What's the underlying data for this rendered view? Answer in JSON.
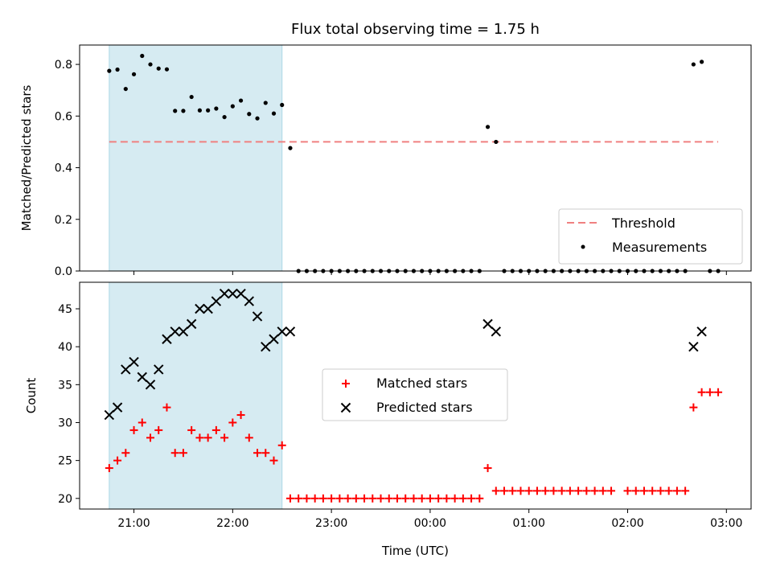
{
  "chart_data": [
    {
      "type": "scatter",
      "title": "Flux total observing time = 1.75 h",
      "xlabel": "",
      "ylabel": "Matched/Predicted stars",
      "ylim": [
        0.0,
        0.875
      ],
      "yticks": [
        "0.0",
        "0.2",
        "0.4",
        "0.6",
        "0.8"
      ],
      "xlim": [
        "20:27",
        "03:15"
      ],
      "xticks": [
        "21:00",
        "22:00",
        "23:00",
        "00:00",
        "01:00",
        "02:00",
        "03:00"
      ],
      "highlight_band": {
        "x": [
          "20:45",
          "22:30"
        ],
        "color": "#add8e6"
      },
      "threshold": {
        "name": "Threshold",
        "value": 0.5,
        "x": [
          "20:45",
          "02:55"
        ],
        "color": "#f08080",
        "style": "dashed"
      },
      "legend": {
        "position": "lower-right",
        "entries": [
          "Threshold",
          "Measurements"
        ]
      },
      "series": [
        {
          "name": "Measurements",
          "marker": "dot",
          "color": "#000000",
          "points": [
            [
              "20:45",
              0.775
            ],
            [
              "20:50",
              0.78
            ],
            [
              "20:55",
              0.705
            ],
            [
              "21:00",
              0.762
            ],
            [
              "21:05",
              0.833
            ],
            [
              "21:10",
              0.8
            ],
            [
              "21:15",
              0.784
            ],
            [
              "21:20",
              0.781
            ],
            [
              "21:25",
              0.62
            ],
            [
              "21:30",
              0.62
            ],
            [
              "21:35",
              0.674
            ],
            [
              "21:40",
              0.622
            ],
            [
              "21:45",
              0.622
            ],
            [
              "21:50",
              0.629
            ],
            [
              "21:55",
              0.596
            ],
            [
              "22:00",
              0.638
            ],
            [
              "22:05",
              0.66
            ],
            [
              "22:10",
              0.608
            ],
            [
              "22:15",
              0.591
            ],
            [
              "22:20",
              0.651
            ],
            [
              "22:25",
              0.61
            ],
            [
              "22:30",
              0.643
            ],
            [
              "22:35",
              0.476
            ],
            [
              "22:40",
              0.0
            ],
            [
              "22:45",
              0.0
            ],
            [
              "22:50",
              0.0
            ],
            [
              "22:55",
              0.0
            ],
            [
              "23:00",
              0.0
            ],
            [
              "23:05",
              0.0
            ],
            [
              "23:10",
              0.0
            ],
            [
              "23:15",
              0.0
            ],
            [
              "23:20",
              0.0
            ],
            [
              "23:25",
              0.0
            ],
            [
              "23:30",
              0.0
            ],
            [
              "23:35",
              0.0
            ],
            [
              "23:40",
              0.0
            ],
            [
              "23:45",
              0.0
            ],
            [
              "23:50",
              0.0
            ],
            [
              "23:55",
              0.0
            ],
            [
              "00:00",
              0.0
            ],
            [
              "00:05",
              0.0
            ],
            [
              "00:10",
              0.0
            ],
            [
              "00:15",
              0.0
            ],
            [
              "00:20",
              0.0
            ],
            [
              "00:25",
              0.0
            ],
            [
              "00:30",
              0.0
            ],
            [
              "00:35",
              0.558
            ],
            [
              "00:40",
              0.5
            ],
            [
              "00:45",
              0.0
            ],
            [
              "00:50",
              0.0
            ],
            [
              "00:55",
              0.0
            ],
            [
              "01:00",
              0.0
            ],
            [
              "01:05",
              0.0
            ],
            [
              "01:10",
              0.0
            ],
            [
              "01:15",
              0.0
            ],
            [
              "01:20",
              0.0
            ],
            [
              "01:25",
              0.0
            ],
            [
              "01:30",
              0.0
            ],
            [
              "01:35",
              0.0
            ],
            [
              "01:40",
              0.0
            ],
            [
              "01:45",
              0.0
            ],
            [
              "01:50",
              0.0
            ],
            [
              "01:55",
              0.0
            ],
            [
              "02:00",
              0.0
            ],
            [
              "02:05",
              0.0
            ],
            [
              "02:10",
              0.0
            ],
            [
              "02:15",
              0.0
            ],
            [
              "02:20",
              0.0
            ],
            [
              "02:25",
              0.0
            ],
            [
              "02:30",
              0.0
            ],
            [
              "02:35",
              0.0
            ],
            [
              "02:40",
              0.8
            ],
            [
              "02:45",
              0.81
            ],
            [
              "02:50",
              0.0
            ],
            [
              "02:55",
              0.0
            ]
          ]
        }
      ]
    },
    {
      "type": "scatter",
      "title": "",
      "xlabel": "Time (UTC)",
      "ylabel": "Count",
      "ylim": [
        18.6,
        48.5
      ],
      "yticks": [
        "20",
        "25",
        "30",
        "35",
        "40",
        "45"
      ],
      "xlim": [
        "20:27",
        "03:15"
      ],
      "xticks": [
        "21:00",
        "22:00",
        "23:00",
        "00:00",
        "01:00",
        "02:00",
        "03:00"
      ],
      "highlight_band": {
        "x": [
          "20:45",
          "22:30"
        ],
        "color": "#add8e6"
      },
      "legend": {
        "position": "center",
        "entries": [
          "Matched stars",
          "Predicted stars"
        ]
      },
      "series": [
        {
          "name": "Matched stars",
          "marker": "plus",
          "color": "#ff0000",
          "points": [
            [
              "20:45",
              24
            ],
            [
              "20:50",
              25
            ],
            [
              "20:55",
              26
            ],
            [
              "21:00",
              29
            ],
            [
              "21:05",
              30
            ],
            [
              "21:10",
              28
            ],
            [
              "21:15",
              29
            ],
            [
              "21:20",
              32
            ],
            [
              "21:25",
              26
            ],
            [
              "21:30",
              26
            ],
            [
              "21:35",
              29
            ],
            [
              "21:40",
              28
            ],
            [
              "21:45",
              28
            ],
            [
              "21:50",
              29
            ],
            [
              "21:55",
              28
            ],
            [
              "22:00",
              30
            ],
            [
              "22:05",
              31
            ],
            [
              "22:10",
              28
            ],
            [
              "22:15",
              26
            ],
            [
              "22:20",
              26
            ],
            [
              "22:25",
              25
            ],
            [
              "22:30",
              27
            ],
            [
              "22:35",
              20
            ],
            [
              "22:40",
              20
            ],
            [
              "22:45",
              20
            ],
            [
              "22:50",
              20
            ],
            [
              "22:55",
              20
            ],
            [
              "23:00",
              20
            ],
            [
              "23:05",
              20
            ],
            [
              "23:10",
              20
            ],
            [
              "23:15",
              20
            ],
            [
              "23:20",
              20
            ],
            [
              "23:25",
              20
            ],
            [
              "23:30",
              20
            ],
            [
              "23:35",
              20
            ],
            [
              "23:40",
              20
            ],
            [
              "23:45",
              20
            ],
            [
              "23:50",
              20
            ],
            [
              "23:55",
              20
            ],
            [
              "00:00",
              20
            ],
            [
              "00:05",
              20
            ],
            [
              "00:10",
              20
            ],
            [
              "00:15",
              20
            ],
            [
              "00:20",
              20
            ],
            [
              "00:25",
              20
            ],
            [
              "00:30",
              20
            ],
            [
              "00:35",
              24
            ],
            [
              "00:40",
              21
            ],
            [
              "00:45",
              21
            ],
            [
              "00:50",
              21
            ],
            [
              "00:55",
              21
            ],
            [
              "01:00",
              21
            ],
            [
              "01:05",
              21
            ],
            [
              "01:10",
              21
            ],
            [
              "01:15",
              21
            ],
            [
              "01:20",
              21
            ],
            [
              "01:25",
              21
            ],
            [
              "01:30",
              21
            ],
            [
              "01:35",
              21
            ],
            [
              "01:40",
              21
            ],
            [
              "01:45",
              21
            ],
            [
              "01:50",
              21
            ],
            [
              "02:00",
              21
            ],
            [
              "02:05",
              21
            ],
            [
              "02:10",
              21
            ],
            [
              "02:15",
              21
            ],
            [
              "02:20",
              21
            ],
            [
              "02:25",
              21
            ],
            [
              "02:30",
              21
            ],
            [
              "02:35",
              21
            ],
            [
              "02:40",
              32
            ],
            [
              "02:45",
              34
            ],
            [
              "02:50",
              34
            ],
            [
              "02:55",
              34
            ]
          ]
        },
        {
          "name": "Predicted stars",
          "marker": "x",
          "color": "#000000",
          "points": [
            [
              "20:45",
              31
            ],
            [
              "20:50",
              32
            ],
            [
              "20:55",
              37
            ],
            [
              "21:00",
              38
            ],
            [
              "21:05",
              36
            ],
            [
              "21:10",
              35
            ],
            [
              "21:15",
              37
            ],
            [
              "21:20",
              41
            ],
            [
              "21:25",
              42
            ],
            [
              "21:30",
              42
            ],
            [
              "21:35",
              43
            ],
            [
              "21:40",
              45
            ],
            [
              "21:45",
              45
            ],
            [
              "21:50",
              46
            ],
            [
              "21:55",
              47
            ],
            [
              "22:00",
              47
            ],
            [
              "22:05",
              47
            ],
            [
              "22:10",
              46
            ],
            [
              "22:15",
              44
            ],
            [
              "22:20",
              40
            ],
            [
              "22:25",
              41
            ],
            [
              "22:30",
              42
            ],
            [
              "22:35",
              42
            ],
            [
              "00:35",
              43
            ],
            [
              "00:40",
              42
            ],
            [
              "02:40",
              40
            ],
            [
              "02:45",
              42
            ]
          ]
        }
      ]
    }
  ]
}
